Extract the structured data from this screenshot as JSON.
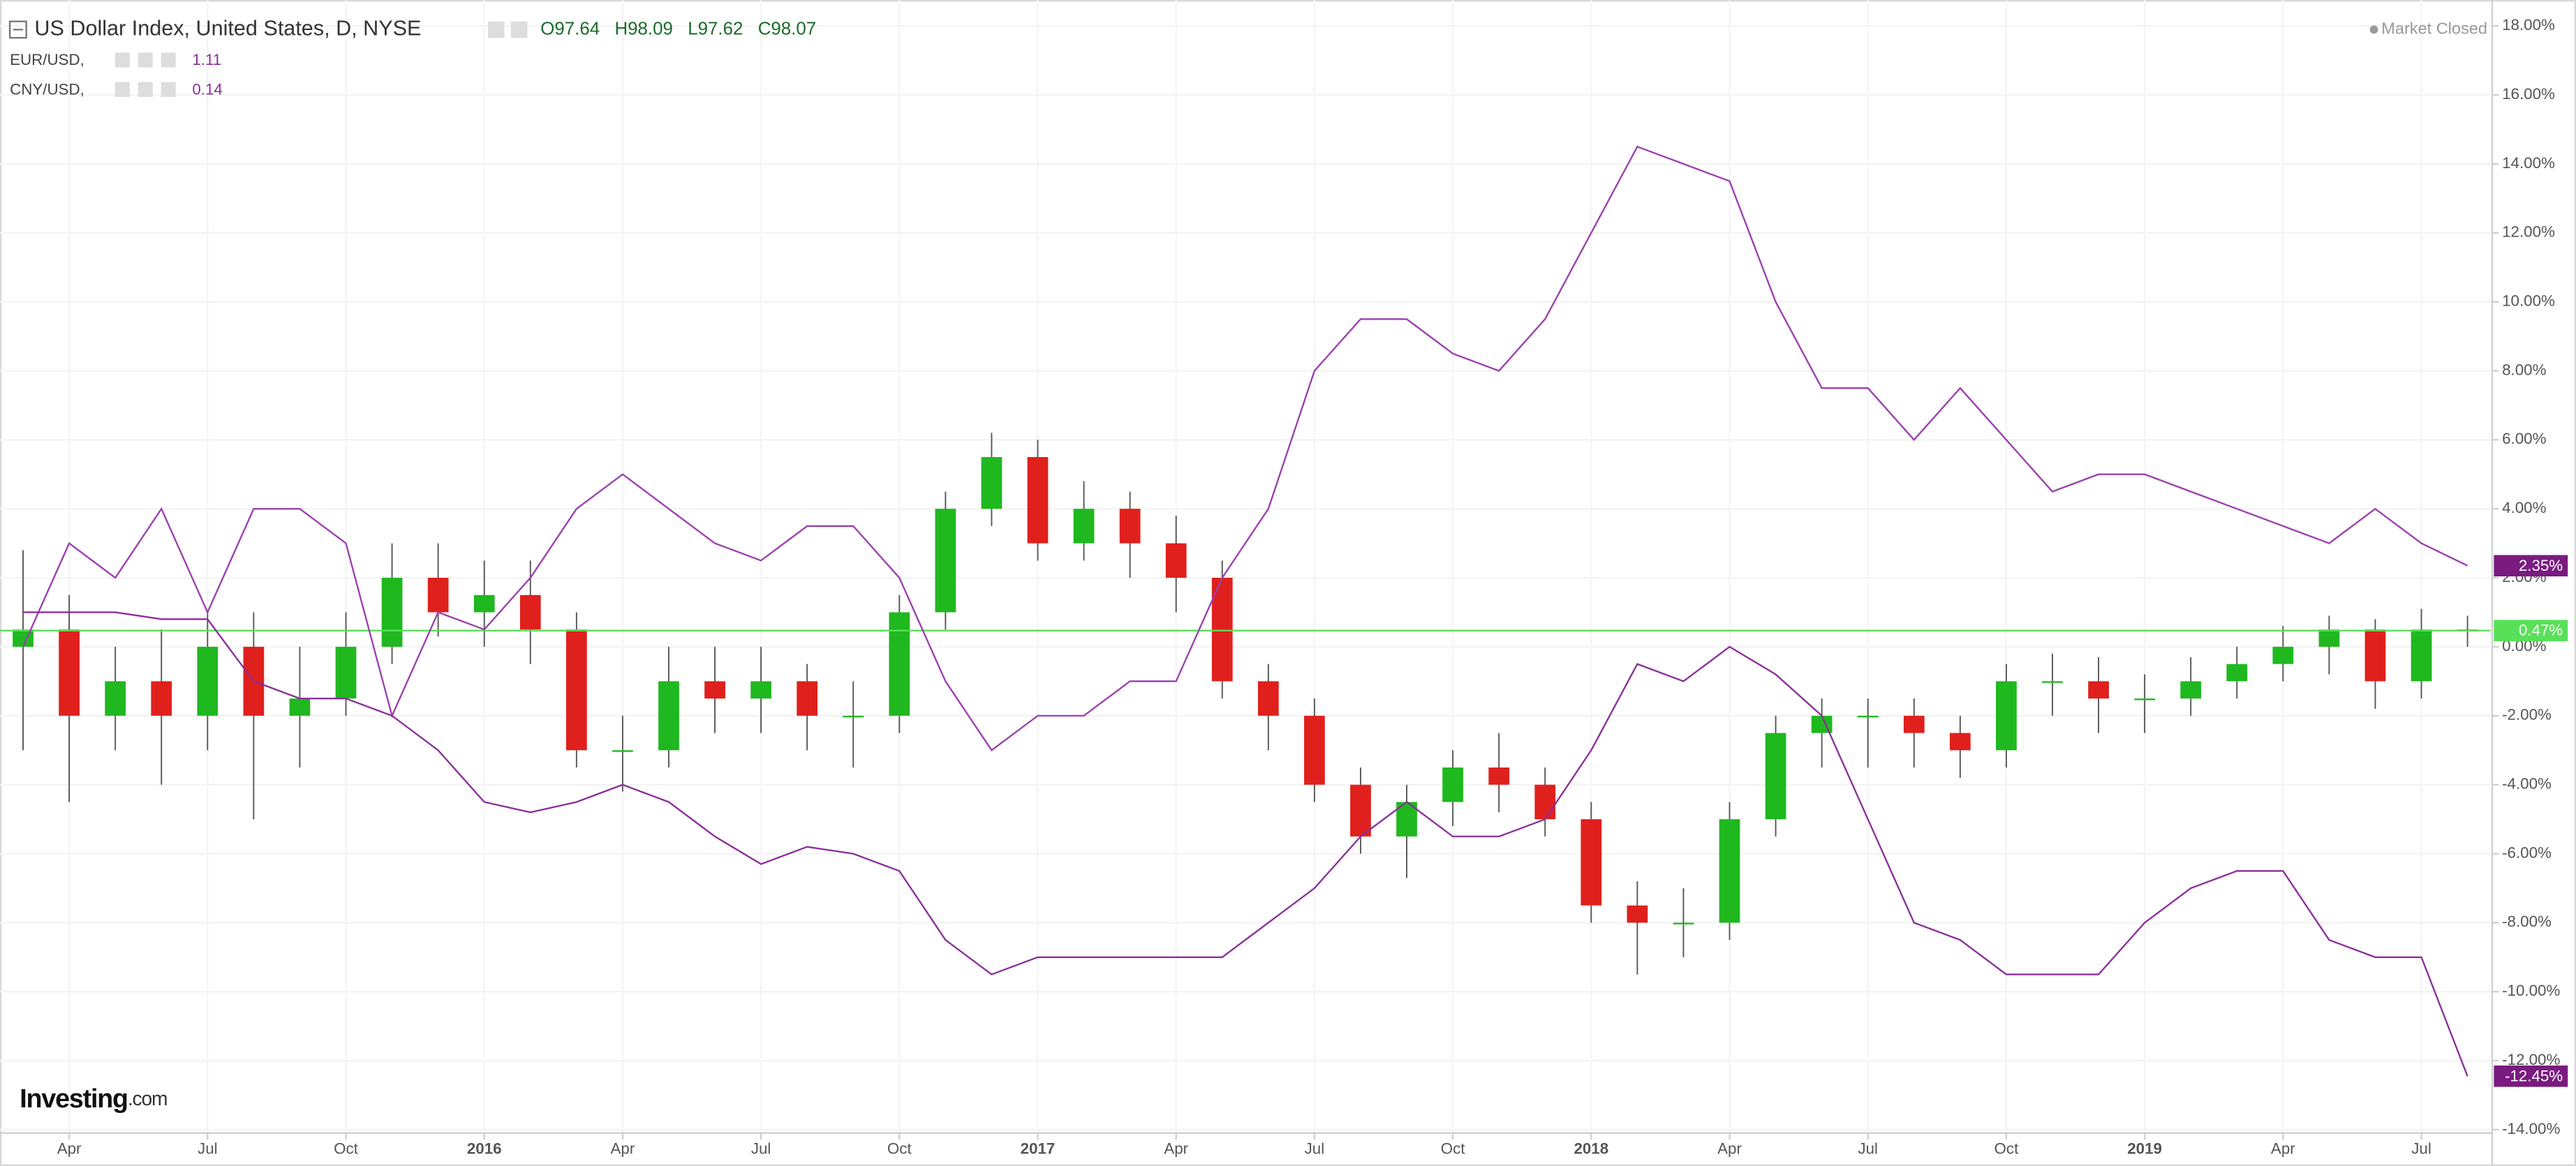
{
  "chart_data": {
    "type": "candlestick",
    "ohlc": [
      {
        "label": "O",
        "value": 97.64
      },
      {
        "label": "H",
        "value": 98.09
      },
      {
        "label": "L",
        "value": 97.62
      },
      {
        "label": "C",
        "value": 98.07
      }
    ],
    "status": "Market Closed",
    "brand": {
      "name": "Investing",
      "suffix": ".com"
    },
    "categories": [
      null,
      "Apr",
      null,
      null,
      "Jul",
      null,
      null,
      "Oct",
      null,
      null,
      "2016",
      null,
      null,
      "Apr",
      null,
      null,
      "Jul",
      null,
      null,
      "Oct",
      null,
      null,
      "2017",
      null,
      null,
      "Apr",
      null,
      null,
      "Jul",
      null,
      null,
      "Oct",
      null,
      null,
      "2018",
      null,
      null,
      "Apr",
      null,
      null,
      "Jul",
      null,
      null,
      "Oct",
      null,
      null,
      "2019",
      null,
      null,
      "Apr",
      null,
      null,
      "Jul",
      null
    ],
    "series": [
      {
        "name": "US Dollar Index, United States, D, NYSE",
        "type": "candlestick",
        "up_color": "#1fb81f",
        "down_color": "#e0201c",
        "marker_color": "#58e058",
        "last_label": "0.47%",
        "open": [
          0,
          0.5,
          -2,
          -1,
          -2,
          0,
          -2,
          -1.5,
          0,
          2,
          1,
          1.5,
          0.5,
          -3,
          -3,
          -1,
          -1.5,
          -1,
          -2,
          -2,
          1,
          4,
          5.5,
          3,
          4,
          3,
          2,
          -1,
          -2,
          -4,
          -5.5,
          -4.5,
          -3.5,
          -4,
          -5,
          -7.5,
          -8,
          -8,
          -5,
          -2.5,
          -2,
          -2,
          -2.5,
          -3,
          -1,
          -1,
          -1.5,
          -1.5,
          -1,
          -0.5,
          0,
          0.5,
          -1,
          0.5
        ],
        "high": [
          2.8,
          1.5,
          0,
          0.5,
          1,
          1,
          0,
          1,
          3,
          3,
          2.5,
          2.5,
          1,
          -2,
          0,
          0,
          0,
          -0.5,
          -1,
          1.5,
          4.5,
          6.2,
          6,
          4.8,
          4.5,
          3.8,
          2.5,
          -0.5,
          -1.5,
          -3.5,
          -4,
          -3,
          -2.5,
          -3.5,
          -4.5,
          -6.8,
          -7,
          -4.5,
          -2,
          -1.5,
          -1.5,
          -1.5,
          -2,
          -0.5,
          -0.2,
          -0.3,
          -0.8,
          -0.3,
          0,
          0.6,
          0.9,
          0.8,
          1.1,
          0.9
        ],
        "low": [
          -3,
          -4.5,
          -3,
          -4,
          -3,
          -5,
          -3.5,
          -2,
          -0.5,
          0.3,
          0,
          -0.5,
          -3.5,
          -4.2,
          -3.5,
          -2.5,
          -2.5,
          -3,
          -3.5,
          -2.5,
          0.5,
          3.5,
          2.5,
          2.5,
          2,
          1,
          -1.5,
          -3,
          -4.5,
          -6,
          -6.7,
          -5.2,
          -4.8,
          -5.5,
          -8,
          -9.5,
          -9,
          -8.5,
          -5.5,
          -3.5,
          -3.5,
          -3.5,
          -3.8,
          -3.5,
          -2,
          -2.5,
          -2.5,
          -2,
          -1.5,
          -1,
          -0.8,
          -1.8,
          -1.5,
          0
        ],
        "close": [
          0.5,
          -2,
          -1,
          -2,
          0,
          -2,
          -1.5,
          0,
          2,
          1,
          1.5,
          0.5,
          -3,
          -3,
          -1,
          -1.5,
          -1,
          -2,
          -2,
          1,
          4,
          5.5,
          3,
          4,
          3,
          2,
          -1,
          -2,
          -4,
          -5.5,
          -4.5,
          -3.5,
          -4,
          -5,
          -7.5,
          -8,
          -8,
          -5,
          -2.5,
          -2,
          -2,
          -2.5,
          -3,
          -1,
          -1,
          -1.5,
          -1.5,
          -1,
          -0.5,
          0,
          0.5,
          -1,
          0.5,
          0.47
        ]
      },
      {
        "name": "EUR/USD,",
        "type": "line",
        "color": "#9b3fae",
        "legend_value": 1.11,
        "last_label": "2.35%",
        "values": [
          0,
          3,
          2,
          4,
          1,
          4,
          4,
          3,
          -2,
          1,
          0.5,
          2,
          4,
          5,
          4,
          3,
          2.5,
          3.5,
          3.5,
          2,
          -1,
          -3,
          -2,
          -2,
          -1,
          -1,
          2,
          4,
          8,
          9.5,
          9.5,
          8.5,
          8,
          9.5,
          12,
          14.5,
          14,
          13.5,
          10,
          7.5,
          7.5,
          6,
          7.5,
          6,
          4.5,
          5,
          5,
          4.5,
          4,
          3.5,
          3,
          4,
          3,
          2.35
        ]
      },
      {
        "name": "CNY/USD,",
        "type": "line",
        "color": "#8a2f9a",
        "legend_value": 0.14,
        "last_label": "-12.45%",
        "values": [
          1,
          1,
          1,
          0.8,
          0.8,
          -1,
          -1.5,
          -1.5,
          -2,
          -3,
          -4.5,
          -4.8,
          -4.5,
          -4,
          -4.5,
          -5.5,
          -6.3,
          -5.8,
          -6,
          -6.5,
          -8.5,
          -9.5,
          -9,
          -9,
          -9,
          -9,
          -9,
          -8,
          -7,
          -5.5,
          -4.5,
          -5.5,
          -5.5,
          -5,
          -3,
          -0.5,
          -1,
          0,
          -0.8,
          -2,
          -5,
          -8,
          -8.5,
          -9.5,
          -9.5,
          -9.5,
          -8,
          -7,
          -6.5,
          -6.5,
          -8.5,
          -9,
          -9,
          -12.45
        ]
      }
    ],
    "ylim": [
      -14.1,
      18.75
    ],
    "yticks": [
      {
        "value": -14,
        "label": "-14.00%"
      },
      {
        "value": -12,
        "label": "-12.00%"
      },
      {
        "value": -10,
        "label": "-10.00%"
      },
      {
        "value": -8,
        "label": "-8.00%"
      },
      {
        "value": -6,
        "label": "-6.00%"
      },
      {
        "value": -4,
        "label": "-4.00%"
      },
      {
        "value": -2,
        "label": "-2.00%"
      },
      {
        "value": 0,
        "label": "0.00%"
      },
      {
        "value": 2,
        "label": "2.00%"
      },
      {
        "value": 4,
        "label": "4.00%"
      },
      {
        "value": 6,
        "label": "6.00%"
      },
      {
        "value": 8,
        "label": "8.00%"
      },
      {
        "value": 10,
        "label": "10.00%"
      },
      {
        "value": 12,
        "label": "12.00%"
      },
      {
        "value": 14,
        "label": "14.00%"
      },
      {
        "value": 16,
        "label": "16.00%"
      },
      {
        "value": 18,
        "label": "18.00%"
      }
    ],
    "grid": true
  }
}
